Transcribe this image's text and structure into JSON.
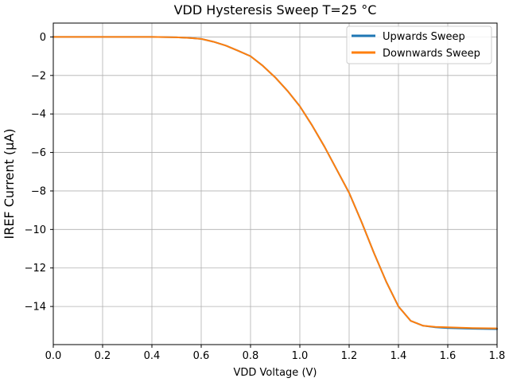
{
  "chart_data": {
    "type": "line",
    "title": "VDD Hysteresis Sweep T=25 °C",
    "xlabel": "VDD Voltage (V)",
    "ylabel": "IREF Current (μA)",
    "xlim": [
      0.0,
      1.8
    ],
    "ylim": [
      -15.98,
      0.72
    ],
    "xticks": [
      0.0,
      0.2,
      0.4,
      0.6,
      0.8,
      1.0,
      1.2,
      1.4,
      1.6,
      1.8
    ],
    "xtick_labels": [
      "0.0",
      "0.2",
      "0.4",
      "0.6",
      "0.8",
      "1.0",
      "1.2",
      "1.4",
      "1.6",
      "1.8"
    ],
    "yticks": [
      0,
      -2,
      -4,
      -6,
      -8,
      -10,
      -12,
      -14
    ],
    "ytick_labels": [
      "0",
      "−2",
      "−4",
      "−6",
      "−8",
      "−10",
      "−12",
      "−14"
    ],
    "grid": true,
    "legend_position": "upper right",
    "series": [
      {
        "name": "Upwards Sweep",
        "color": "#1f77b4",
        "x": [
          0.0,
          0.1,
          0.2,
          0.3,
          0.4,
          0.45,
          0.5,
          0.55,
          0.6,
          0.65,
          0.7,
          0.75,
          0.8,
          0.85,
          0.9,
          0.95,
          1.0,
          1.05,
          1.1,
          1.15,
          1.2,
          1.25,
          1.3,
          1.35,
          1.4,
          1.45,
          1.5,
          1.55,
          1.6,
          1.7,
          1.8
        ],
        "y": [
          0.0,
          0.0,
          0.0,
          0.0,
          0.0,
          -0.01,
          -0.02,
          -0.05,
          -0.1,
          -0.25,
          -0.45,
          -0.72,
          -1.0,
          -1.5,
          -2.1,
          -2.8,
          -3.6,
          -4.6,
          -5.7,
          -6.9,
          -8.1,
          -9.6,
          -11.2,
          -12.7,
          -14.0,
          -14.75,
          -15.0,
          -15.08,
          -15.12,
          -15.16,
          -15.18
        ]
      },
      {
        "name": "Downwards Sweep",
        "color": "#ff7f0e",
        "x": [
          0.0,
          0.1,
          0.2,
          0.3,
          0.4,
          0.45,
          0.5,
          0.55,
          0.6,
          0.65,
          0.7,
          0.75,
          0.8,
          0.85,
          0.9,
          0.95,
          1.0,
          1.05,
          1.1,
          1.15,
          1.2,
          1.25,
          1.3,
          1.35,
          1.4,
          1.45,
          1.5,
          1.55,
          1.6,
          1.7,
          1.8
        ],
        "y": [
          0.0,
          0.0,
          0.0,
          0.0,
          0.0,
          -0.01,
          -0.02,
          -0.05,
          -0.1,
          -0.25,
          -0.45,
          -0.72,
          -1.0,
          -1.5,
          -2.1,
          -2.8,
          -3.6,
          -4.6,
          -5.7,
          -6.9,
          -8.1,
          -9.6,
          -11.2,
          -12.7,
          -14.0,
          -14.75,
          -15.0,
          -15.06,
          -15.08,
          -15.12,
          -15.14
        ]
      }
    ]
  }
}
